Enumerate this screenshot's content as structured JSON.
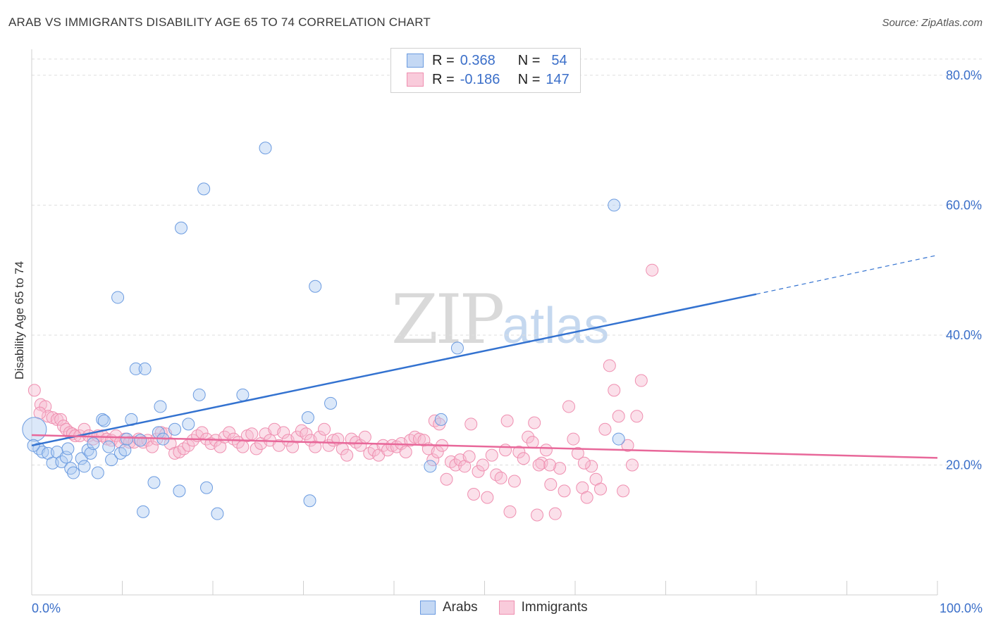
{
  "header": {
    "title": "ARAB VS IMMIGRANTS DISABILITY AGE 65 TO 74 CORRELATION CHART",
    "source": "Source: ZipAtlas.com"
  },
  "legend_box": {
    "rows": [
      {
        "r_label": "R =",
        "r_value": "0.368",
        "n_label": "N =",
        "n_value": "54"
      },
      {
        "r_label": "R =",
        "r_value": "-0.186",
        "n_label": "N =",
        "n_value": "147"
      }
    ]
  },
  "watermark": {
    "zip": "ZIP",
    "atlas": "atlas"
  },
  "chart_data": {
    "type": "scatter",
    "title": "ARAB VS IMMIGRANTS DISABILITY AGE 65 TO 74 CORRELATION CHART",
    "ylabel": "Disability Age 65 to 74",
    "xlabel": "",
    "xlim": [
      0,
      100
    ],
    "ylim": [
      0,
      84
    ],
    "x_ticks": [
      {
        "value": 0,
        "label": "0.0%"
      },
      {
        "value": 100,
        "label": "100.0%"
      }
    ],
    "y_ticks": [
      {
        "value": 20,
        "label": "20.0%"
      },
      {
        "value": 40,
        "label": "40.0%"
      },
      {
        "value": 60,
        "label": "60.0%"
      },
      {
        "value": 80,
        "label": "80.0%"
      }
    ],
    "grid": true,
    "colors": {
      "arabs": "#6b9be0",
      "immigrants": "#ef8fb0",
      "arabs_line": "#3372d0",
      "immigrants_line": "#e8689a",
      "tick_text": "#3b6fc9"
    },
    "series": [
      {
        "name": "Arabs",
        "trend": {
          "x0": 0,
          "y0": 23.0,
          "x1": 80,
          "y1": 46.3,
          "dashed_to_x": 100,
          "dashed_to_y": 52.3
        },
        "points": [
          [
            0.3,
            25.5
          ],
          [
            0.8,
            22.5
          ],
          [
            1.2,
            22.0
          ],
          [
            1.8,
            21.8
          ],
          [
            2.3,
            20.3
          ],
          [
            2.8,
            22.0
          ],
          [
            3.3,
            20.5
          ],
          [
            3.8,
            21.2
          ],
          [
            4.0,
            22.5
          ],
          [
            4.3,
            19.5
          ],
          [
            4.6,
            18.8
          ],
          [
            5.5,
            21.0
          ],
          [
            5.8,
            19.8
          ],
          [
            6.2,
            22.3
          ],
          [
            6.5,
            21.8
          ],
          [
            6.8,
            23.3
          ],
          [
            7.3,
            18.8
          ],
          [
            7.8,
            27.0
          ],
          [
            8.0,
            26.8
          ],
          [
            8.5,
            22.8
          ],
          [
            8.8,
            20.8
          ],
          [
            9.5,
            45.8
          ],
          [
            9.8,
            21.8
          ],
          [
            10.3,
            22.3
          ],
          [
            10.5,
            24.0
          ],
          [
            11.0,
            27.0
          ],
          [
            11.5,
            34.8
          ],
          [
            12.0,
            23.8
          ],
          [
            12.3,
            12.8
          ],
          [
            12.5,
            34.8
          ],
          [
            13.5,
            17.3
          ],
          [
            14.0,
            25.0
          ],
          [
            14.2,
            29.0
          ],
          [
            14.5,
            24.0
          ],
          [
            15.8,
            25.5
          ],
          [
            16.3,
            16.0
          ],
          [
            16.5,
            56.5
          ],
          [
            17.3,
            26.3
          ],
          [
            18.5,
            30.8
          ],
          [
            19.0,
            62.5
          ],
          [
            19.3,
            16.5
          ],
          [
            20.5,
            12.5
          ],
          [
            23.3,
            30.8
          ],
          [
            25.8,
            68.8
          ],
          [
            30.5,
            27.3
          ],
          [
            30.7,
            14.5
          ],
          [
            31.3,
            47.5
          ],
          [
            33.0,
            29.5
          ],
          [
            44.0,
            19.8
          ],
          [
            45.2,
            27.0
          ],
          [
            47.0,
            38.0
          ],
          [
            64.3,
            60.0
          ],
          [
            64.8,
            24.0
          ],
          [
            0.2,
            23.0
          ]
        ]
      },
      {
        "name": "Immigrants",
        "trend": {
          "x0": 0,
          "y0": 24.6,
          "x1": 100,
          "y1": 21.1
        },
        "points": [
          [
            0.3,
            31.5
          ],
          [
            1.0,
            29.3
          ],
          [
            1.5,
            29.0
          ],
          [
            1.8,
            27.5
          ],
          [
            2.3,
            27.3
          ],
          [
            2.8,
            27.0
          ],
          [
            3.2,
            27.0
          ],
          [
            3.5,
            26.0
          ],
          [
            3.8,
            25.5
          ],
          [
            4.2,
            25.0
          ],
          [
            4.5,
            24.8
          ],
          [
            4.8,
            24.5
          ],
          [
            5.3,
            24.5
          ],
          [
            5.8,
            25.5
          ],
          [
            6.3,
            24.5
          ],
          [
            6.8,
            24.0
          ],
          [
            7.3,
            24.5
          ],
          [
            7.8,
            24.5
          ],
          [
            8.3,
            24.0
          ],
          [
            8.8,
            23.8
          ],
          [
            9.3,
            24.5
          ],
          [
            9.8,
            23.5
          ],
          [
            10.3,
            24.0
          ],
          [
            10.8,
            23.5
          ],
          [
            11.3,
            23.5
          ],
          [
            11.8,
            24.0
          ],
          [
            12.3,
            23.5
          ],
          [
            12.8,
            23.8
          ],
          [
            13.3,
            22.8
          ],
          [
            13.8,
            24.0
          ],
          [
            14.3,
            25.0
          ],
          [
            14.8,
            24.8
          ],
          [
            15.3,
            23.3
          ],
          [
            15.8,
            21.8
          ],
          [
            16.3,
            22.0
          ],
          [
            16.8,
            22.5
          ],
          [
            17.3,
            23.0
          ],
          [
            17.8,
            23.8
          ],
          [
            18.3,
            24.5
          ],
          [
            18.8,
            25.0
          ],
          [
            19.3,
            24.0
          ],
          [
            19.8,
            23.3
          ],
          [
            20.3,
            23.8
          ],
          [
            20.8,
            22.8
          ],
          [
            21.3,
            24.3
          ],
          [
            21.8,
            25.0
          ],
          [
            22.3,
            24.0
          ],
          [
            22.8,
            23.5
          ],
          [
            23.3,
            22.8
          ],
          [
            23.8,
            24.5
          ],
          [
            24.3,
            24.8
          ],
          [
            24.8,
            22.5
          ],
          [
            25.3,
            23.3
          ],
          [
            25.8,
            24.8
          ],
          [
            26.3,
            23.8
          ],
          [
            26.8,
            25.5
          ],
          [
            27.3,
            23.0
          ],
          [
            27.8,
            25.0
          ],
          [
            28.3,
            23.8
          ],
          [
            28.8,
            22.8
          ],
          [
            29.3,
            24.3
          ],
          [
            29.8,
            25.3
          ],
          [
            30.3,
            24.8
          ],
          [
            30.8,
            23.8
          ],
          [
            31.3,
            22.8
          ],
          [
            31.8,
            24.3
          ],
          [
            32.3,
            25.5
          ],
          [
            32.8,
            23.0
          ],
          [
            33.3,
            23.8
          ],
          [
            33.8,
            24.0
          ],
          [
            34.3,
            22.5
          ],
          [
            34.8,
            21.5
          ],
          [
            35.3,
            24.0
          ],
          [
            35.8,
            23.5
          ],
          [
            36.3,
            23.0
          ],
          [
            36.8,
            24.3
          ],
          [
            37.3,
            21.8
          ],
          [
            37.8,
            22.3
          ],
          [
            38.3,
            21.5
          ],
          [
            38.8,
            23.0
          ],
          [
            39.3,
            22.3
          ],
          [
            39.8,
            23.0
          ],
          [
            40.3,
            22.8
          ],
          [
            40.8,
            23.3
          ],
          [
            41.3,
            22.0
          ],
          [
            41.8,
            23.8
          ],
          [
            42.3,
            24.3
          ],
          [
            42.8,
            24.0
          ],
          [
            43.3,
            23.8
          ],
          [
            43.8,
            22.5
          ],
          [
            44.3,
            20.8
          ],
          [
            44.8,
            22.0
          ],
          [
            45.3,
            23.0
          ],
          [
            45.8,
            17.8
          ],
          [
            46.3,
            20.5
          ],
          [
            46.8,
            20.0
          ],
          [
            47.3,
            20.8
          ],
          [
            47.8,
            19.8
          ],
          [
            48.3,
            21.3
          ],
          [
            48.8,
            15.5
          ],
          [
            49.3,
            19.0
          ],
          [
            49.8,
            20.0
          ],
          [
            50.3,
            15.0
          ],
          [
            50.8,
            21.5
          ],
          [
            51.3,
            18.5
          ],
          [
            51.8,
            18.0
          ],
          [
            52.3,
            22.3
          ],
          [
            52.8,
            12.8
          ],
          [
            53.3,
            17.5
          ],
          [
            53.8,
            22.0
          ],
          [
            54.3,
            21.0
          ],
          [
            54.8,
            24.3
          ],
          [
            55.3,
            23.5
          ],
          [
            55.8,
            12.3
          ],
          [
            56.3,
            20.3
          ],
          [
            56.8,
            22.3
          ],
          [
            57.3,
            17.0
          ],
          [
            57.8,
            12.5
          ],
          [
            58.3,
            19.5
          ],
          [
            58.8,
            16.0
          ],
          [
            59.3,
            29.0
          ],
          [
            59.8,
            24.0
          ],
          [
            60.3,
            21.8
          ],
          [
            60.8,
            16.5
          ],
          [
            61.3,
            15.0
          ],
          [
            61.8,
            19.8
          ],
          [
            62.3,
            17.8
          ],
          [
            62.8,
            16.3
          ],
          [
            63.3,
            25.5
          ],
          [
            63.8,
            35.3
          ],
          [
            64.3,
            31.5
          ],
          [
            64.8,
            27.5
          ],
          [
            65.3,
            16.0
          ],
          [
            65.8,
            23.0
          ],
          [
            66.3,
            20.0
          ],
          [
            66.8,
            27.5
          ],
          [
            67.3,
            33.0
          ],
          [
            55.5,
            26.5
          ],
          [
            52.5,
            26.8
          ],
          [
            44.5,
            26.8
          ],
          [
            45.0,
            26.3
          ],
          [
            48.5,
            26.3
          ],
          [
            68.5,
            50.0
          ],
          [
            57.2,
            20.0
          ],
          [
            56.0,
            20.0
          ],
          [
            61.0,
            20.3
          ],
          [
            0.9,
            28.0
          ]
        ]
      }
    ]
  },
  "bottom_legend": {
    "arabs": "Arabs",
    "immigrants": "Immigrants"
  }
}
